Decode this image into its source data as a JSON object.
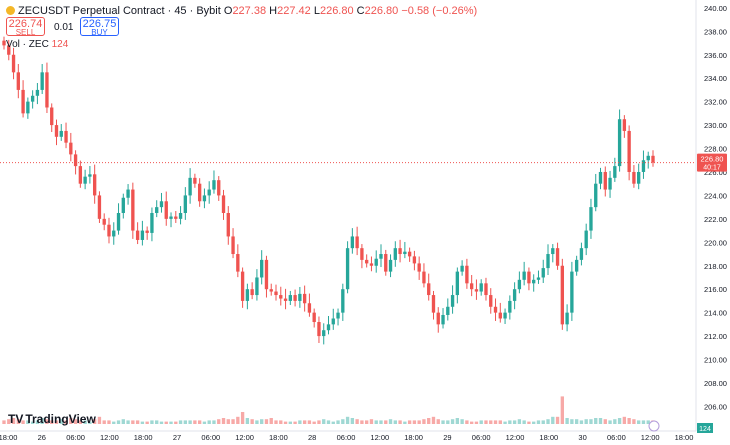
{
  "header": {
    "symbol": "ZECUSDT Perpetual Contract",
    "interval": "45",
    "exchange": "Bybit",
    "o_label": "O",
    "o_value": "227.38",
    "h_label": "H",
    "h_value": "227.42",
    "l_label": "L",
    "l_value": "226.80",
    "c_label": "C",
    "c_value": "226.80",
    "change": "−0.58 (−0.26%)"
  },
  "trade": {
    "sell_price": "226.74",
    "sell_label": "SELL",
    "quantity": "0.01",
    "buy_price": "226.75",
    "buy_label": "BUY"
  },
  "volume_legend": {
    "label": "Vol · ZEC",
    "value": "124"
  },
  "price_badge": {
    "price": "226.80",
    "countdown": "40:17"
  },
  "volume_badge": "124",
  "branding": "TradingView",
  "colors": {
    "up": "#26a69a",
    "down": "#ef5350",
    "vol_up": "#9fd8d3",
    "vol_down": "#f7a9a7"
  },
  "chart_data": {
    "type": "candlestick",
    "y_axis": {
      "range": [
        204.5,
        240.5
      ],
      "ticks": [
        206,
        208,
        210,
        212,
        214,
        216,
        218,
        220,
        222,
        224,
        226,
        228,
        230,
        232,
        234,
        236,
        238,
        240
      ],
      "position": "right"
    },
    "x_axis": {
      "labels": [
        "18:00",
        "26",
        "06:00",
        "12:00",
        "18:00",
        "27",
        "06:00",
        "12:00",
        "18:00",
        "28",
        "06:00",
        "12:00",
        "18:00",
        "29",
        "06:00",
        "12:00",
        "18:00",
        "30",
        "06:00",
        "12:00",
        "18:00"
      ]
    },
    "last_price": 226.8,
    "closes": [
      236.8,
      236.0,
      234.5,
      233.0,
      231.0,
      232.0,
      232.5,
      233.0,
      234.5,
      231.5,
      230.0,
      229.0,
      229.5,
      228.5,
      227.5,
      226.5,
      225.0,
      225.6,
      225.8,
      224.0,
      222.0,
      221.5,
      220.5,
      221.0,
      222.5,
      223.8,
      224.5,
      221.0,
      220.2,
      221.0,
      220.8,
      222.5,
      223.0,
      223.5,
      222.0,
      222.2,
      222.0,
      222.5,
      224.0,
      225.5,
      225.0,
      223.5,
      224.0,
      224.5,
      225.3,
      224.0,
      222.5,
      220.5,
      219.0,
      217.5,
      215.0,
      216.0,
      215.5,
      217.0,
      218.5,
      216.0,
      215.8,
      215.5,
      215.2,
      215.0,
      215.5,
      215.0,
      215.6,
      214.8,
      214.0,
      213.2,
      212.0,
      212.5,
      213.0,
      213.5,
      214.0,
      216.0,
      219.5,
      220.5,
      219.5,
      218.5,
      218.2,
      218.0,
      218.6,
      219.0,
      217.5,
      218.5,
      219.5,
      219.0,
      219.2,
      218.8,
      218.2,
      217.5,
      216.5,
      215.5,
      214.0,
      213.0,
      213.8,
      214.5,
      215.5,
      217.5,
      218.0,
      216.5,
      216.0,
      215.8,
      216.5,
      215.5,
      214.5,
      214.0,
      213.5,
      214.0,
      215.0,
      216.0,
      216.8,
      217.5,
      216.5,
      216.8,
      217.0,
      217.8,
      219.0,
      219.5,
      218.0,
      213.0,
      214.0,
      217.5,
      218.5,
      219.5,
      221.0,
      223.0,
      225.0,
      226.0,
      224.5,
      225.5,
      226.5,
      230.5,
      229.5,
      226.0,
      225.0,
      226.0,
      227.0,
      227.38,
      226.8
    ],
    "volumes": [
      0.3,
      0.4,
      0.5,
      0.4,
      0.3,
      0.3,
      0.2,
      0.3,
      0.5,
      0.4,
      0.3,
      0.3,
      0.4,
      0.3,
      0.5,
      0.4,
      0.3,
      0.3,
      0.2,
      0.4,
      0.6,
      0.3,
      0.3,
      0.2,
      0.3,
      0.4,
      0.3,
      0.3,
      0.3,
      0.2,
      0.2,
      0.3,
      0.3,
      0.2,
      0.2,
      0.2,
      0.2,
      0.3,
      0.3,
      0.3,
      0.3,
      0.3,
      0.2,
      0.3,
      0.3,
      0.4,
      0.5,
      0.4,
      0.4,
      0.6,
      1.0,
      0.5,
      0.4,
      0.3,
      0.4,
      0.4,
      0.5,
      0.3,
      0.3,
      0.2,
      0.2,
      0.2,
      0.3,
      0.3,
      0.3,
      0.2,
      0.3,
      0.4,
      0.3,
      0.2,
      0.3,
      0.4,
      0.6,
      0.5,
      0.4,
      0.3,
      0.3,
      0.4,
      0.3,
      0.3,
      0.3,
      0.4,
      0.3,
      0.3,
      0.2,
      0.3,
      0.3,
      0.3,
      0.4,
      0.5,
      0.6,
      0.4,
      0.3,
      0.3,
      0.4,
      0.5,
      0.4,
      0.3,
      0.2,
      0.2,
      0.3,
      0.3,
      0.3,
      0.3,
      0.3,
      0.2,
      0.3,
      0.3,
      0.4,
      0.3,
      0.2,
      0.2,
      0.3,
      0.3,
      0.4,
      0.6,
      0.6,
      2.3,
      0.5,
      0.4,
      0.4,
      0.3,
      0.4,
      0.4,
      0.5,
      0.5,
      0.4,
      0.3,
      0.4,
      0.5,
      0.6,
      0.5,
      0.4,
      0.3,
      0.3,
      0.3,
      0.3
    ]
  }
}
